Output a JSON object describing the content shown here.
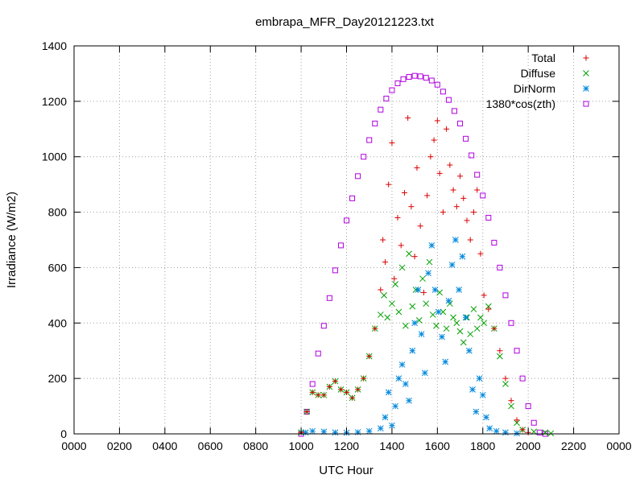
{
  "chart_data": {
    "type": "scatter",
    "title": "embrapa_MFR_Day20121223.txt",
    "xlabel": "UTC Hour",
    "ylabel": "Irradiance (W/m2)",
    "xlim": [
      0,
      24
    ],
    "ylim": [
      0,
      1400
    ],
    "x_ticks": [
      0,
      2,
      4,
      6,
      8,
      10,
      12,
      14,
      16,
      18,
      20,
      22,
      24
    ],
    "x_tick_labels": [
      "0000",
      "0200",
      "0400",
      "0600",
      "0800",
      "1000",
      "1200",
      "1400",
      "1600",
      "1800",
      "2000",
      "2200",
      "0000"
    ],
    "y_ticks": [
      0,
      200,
      400,
      600,
      800,
      1000,
      1200,
      1400
    ],
    "y_tick_labels": [
      "0",
      "200",
      "400",
      "600",
      "800",
      "1000",
      "1200",
      "1400"
    ],
    "grid": true,
    "legend_position": "top-right",
    "series": [
      {
        "name": "Total",
        "color": "#dd0000",
        "marker": "plus",
        "points": [
          [
            10.0,
            5
          ],
          [
            10.25,
            80
          ],
          [
            10.5,
            150
          ],
          [
            10.75,
            140
          ],
          [
            11.0,
            140
          ],
          [
            11.25,
            170
          ],
          [
            11.5,
            190
          ],
          [
            11.75,
            160
          ],
          [
            12.0,
            150
          ],
          [
            12.25,
            130
          ],
          [
            12.5,
            160
          ],
          [
            12.75,
            200
          ],
          [
            13.0,
            280
          ],
          [
            13.25,
            380
          ],
          [
            13.5,
            520
          ],
          [
            13.6,
            700
          ],
          [
            13.7,
            620
          ],
          [
            13.85,
            900
          ],
          [
            14.0,
            1050
          ],
          [
            14.1,
            560
          ],
          [
            14.25,
            780
          ],
          [
            14.4,
            680
          ],
          [
            14.55,
            870
          ],
          [
            14.7,
            1140
          ],
          [
            14.85,
            820
          ],
          [
            15.0,
            640
          ],
          [
            15.1,
            960
          ],
          [
            15.25,
            750
          ],
          [
            15.4,
            510
          ],
          [
            15.55,
            860
          ],
          [
            15.7,
            1000
          ],
          [
            15.85,
            1060
          ],
          [
            16.0,
            1130
          ],
          [
            16.1,
            940
          ],
          [
            16.25,
            800
          ],
          [
            16.4,
            1100
          ],
          [
            16.55,
            970
          ],
          [
            16.7,
            880
          ],
          [
            16.85,
            820
          ],
          [
            17.0,
            930
          ],
          [
            17.15,
            850
          ],
          [
            17.3,
            770
          ],
          [
            17.45,
            700
          ],
          [
            17.6,
            800
          ],
          [
            17.75,
            880
          ],
          [
            17.9,
            650
          ],
          [
            18.05,
            500
          ],
          [
            18.25,
            450
          ],
          [
            18.5,
            380
          ],
          [
            18.75,
            300
          ],
          [
            19.0,
            200
          ],
          [
            19.25,
            120
          ],
          [
            19.5,
            50
          ],
          [
            19.75,
            15
          ],
          [
            20.0,
            5
          ]
        ]
      },
      {
        "name": "Diffuse",
        "color": "#00a000",
        "marker": "cross",
        "points": [
          [
            10.0,
            5
          ],
          [
            10.25,
            80
          ],
          [
            10.5,
            150
          ],
          [
            10.75,
            140
          ],
          [
            11.0,
            140
          ],
          [
            11.25,
            170
          ],
          [
            11.5,
            190
          ],
          [
            11.75,
            160
          ],
          [
            12.0,
            150
          ],
          [
            12.25,
            130
          ],
          [
            12.5,
            160
          ],
          [
            12.75,
            200
          ],
          [
            13.0,
            280
          ],
          [
            13.25,
            380
          ],
          [
            13.5,
            430
          ],
          [
            13.65,
            500
          ],
          [
            13.8,
            420
          ],
          [
            14.0,
            470
          ],
          [
            14.15,
            540
          ],
          [
            14.3,
            440
          ],
          [
            14.45,
            600
          ],
          [
            14.6,
            390
          ],
          [
            14.75,
            650
          ],
          [
            14.9,
            460
          ],
          [
            15.05,
            520
          ],
          [
            15.2,
            410
          ],
          [
            15.35,
            560
          ],
          [
            15.5,
            470
          ],
          [
            15.65,
            620
          ],
          [
            15.8,
            430
          ],
          [
            15.95,
            390
          ],
          [
            16.1,
            510
          ],
          [
            16.25,
            440
          ],
          [
            16.4,
            380
          ],
          [
            16.55,
            470
          ],
          [
            16.7,
            420
          ],
          [
            16.85,
            400
          ],
          [
            17.0,
            370
          ],
          [
            17.15,
            330
          ],
          [
            17.3,
            420
          ],
          [
            17.45,
            360
          ],
          [
            17.6,
            450
          ],
          [
            17.75,
            380
          ],
          [
            17.9,
            420
          ],
          [
            18.05,
            400
          ],
          [
            18.25,
            460
          ],
          [
            18.5,
            380
          ],
          [
            18.75,
            280
          ],
          [
            19.0,
            180
          ],
          [
            19.25,
            100
          ],
          [
            19.5,
            40
          ],
          [
            19.75,
            15
          ],
          [
            20.25,
            8
          ],
          [
            20.75,
            5
          ],
          [
            21.0,
            2
          ]
        ]
      },
      {
        "name": "DirNorm",
        "color": "#0088dd",
        "marker": "star",
        "points": [
          [
            10.2,
            5
          ],
          [
            10.5,
            10
          ],
          [
            11.0,
            8
          ],
          [
            11.5,
            5
          ],
          [
            12.0,
            4
          ],
          [
            12.5,
            6
          ],
          [
            13.0,
            10
          ],
          [
            13.5,
            20
          ],
          [
            13.7,
            60
          ],
          [
            13.85,
            150
          ],
          [
            14.0,
            30
          ],
          [
            14.15,
            100
          ],
          [
            14.3,
            200
          ],
          [
            14.45,
            250
          ],
          [
            14.6,
            180
          ],
          [
            14.75,
            120
          ],
          [
            14.9,
            300
          ],
          [
            15.0,
            400
          ],
          [
            15.15,
            520
          ],
          [
            15.3,
            360
          ],
          [
            15.45,
            220
          ],
          [
            15.6,
            580
          ],
          [
            15.75,
            680
          ],
          [
            15.9,
            520
          ],
          [
            16.05,
            440
          ],
          [
            16.2,
            350
          ],
          [
            16.35,
            260
          ],
          [
            16.5,
            480
          ],
          [
            16.65,
            610
          ],
          [
            16.8,
            700
          ],
          [
            16.95,
            520
          ],
          [
            17.1,
            640
          ],
          [
            17.25,
            420
          ],
          [
            17.4,
            300
          ],
          [
            17.55,
            160
          ],
          [
            17.7,
            80
          ],
          [
            17.85,
            200
          ],
          [
            18.0,
            140
          ],
          [
            18.15,
            60
          ],
          [
            18.3,
            20
          ],
          [
            18.6,
            10
          ],
          [
            19.0,
            5
          ],
          [
            19.5,
            2
          ]
        ]
      },
      {
        "name": "1380*cos(zth)",
        "color": "#b000e0",
        "marker": "box",
        "points": [
          [
            10.0,
            0
          ],
          [
            10.25,
            80
          ],
          [
            10.5,
            180
          ],
          [
            10.75,
            290
          ],
          [
            11.0,
            390
          ],
          [
            11.25,
            490
          ],
          [
            11.5,
            590
          ],
          [
            11.75,
            680
          ],
          [
            12.0,
            770
          ],
          [
            12.25,
            850
          ],
          [
            12.5,
            930
          ],
          [
            12.75,
            1000
          ],
          [
            13.0,
            1060
          ],
          [
            13.25,
            1120
          ],
          [
            13.5,
            1170
          ],
          [
            13.75,
            1210
          ],
          [
            14.0,
            1240
          ],
          [
            14.25,
            1265
          ],
          [
            14.5,
            1280
          ],
          [
            14.75,
            1288
          ],
          [
            15.0,
            1292
          ],
          [
            15.25,
            1290
          ],
          [
            15.5,
            1285
          ],
          [
            15.75,
            1275
          ],
          [
            16.0,
            1260
          ],
          [
            16.25,
            1235
          ],
          [
            16.5,
            1205
          ],
          [
            16.75,
            1165
          ],
          [
            17.0,
            1120
          ],
          [
            17.25,
            1065
          ],
          [
            17.5,
            1005
          ],
          [
            17.75,
            935
          ],
          [
            18.0,
            860
          ],
          [
            18.25,
            780
          ],
          [
            18.5,
            690
          ],
          [
            18.75,
            600
          ],
          [
            19.0,
            500
          ],
          [
            19.25,
            400
          ],
          [
            19.5,
            300
          ],
          [
            19.75,
            200
          ],
          [
            20.0,
            100
          ],
          [
            20.25,
            40
          ],
          [
            20.5,
            5
          ],
          [
            20.75,
            0
          ]
        ]
      }
    ]
  }
}
